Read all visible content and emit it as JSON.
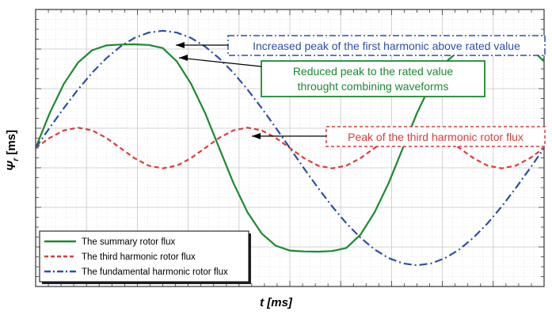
{
  "chart_data": {
    "type": "line",
    "title": "",
    "ylabel": "Ψ_r [ms]",
    "ylabel_symbol": "Ψ",
    "ylabel_sub": "r",
    "ylabel_unit": "[ms]",
    "xlabel": "t [ms]",
    "grid": true,
    "legend": "bottom-left",
    "series": [
      {
        "name": "The summary rotor flux",
        "color": "#1a8a2e",
        "style": "solid",
        "x": [
          0,
          10,
          20,
          30,
          40,
          50,
          60,
          70,
          80,
          90,
          100,
          110,
          120,
          130,
          140,
          150,
          160,
          170,
          180,
          190,
          200,
          210,
          220,
          230,
          240,
          250,
          260,
          270,
          280,
          290,
          300,
          310,
          320,
          330,
          340,
          350,
          360
        ],
        "y": [
          0,
          0.303,
          0.557,
          0.74,
          0.847,
          0.889,
          0.896,
          0.898,
          0.893,
          0.866,
          0.75,
          0.557,
          0.303,
          0.0,
          -0.303,
          -0.557,
          -0.74,
          -0.847,
          -0.889,
          -0.896,
          -0.898,
          -0.893,
          -0.866,
          -0.75,
          -0.557,
          -0.303,
          0,
          0.303,
          0.557,
          0.74,
          0.847,
          0.889,
          0.896,
          0.898,
          0.893,
          0.866,
          0.75
        ]
      },
      {
        "name": "The third harmonic rotor flux",
        "color": "#e03a3a",
        "style": "dashed",
        "x": [
          0,
          10,
          20,
          30,
          40,
          50,
          60,
          70,
          80,
          90,
          100,
          110,
          120,
          130,
          140,
          150,
          160,
          170,
          180,
          190,
          200,
          210,
          220,
          230,
          240,
          250,
          260,
          270,
          280,
          290,
          300,
          310,
          320,
          330,
          340,
          350,
          360
        ],
        "y": [
          0,
          0.088,
          0.153,
          0.176,
          0.153,
          0.088,
          0,
          -0.088,
          -0.153,
          -0.176,
          -0.153,
          -0.088,
          0,
          0.088,
          0.153,
          0.176,
          0.153,
          0.088,
          0,
          -0.088,
          -0.153,
          -0.176,
          -0.153,
          -0.088,
          0,
          0.088,
          0.153,
          0.176,
          0.153,
          0.088,
          0,
          -0.088,
          -0.153,
          -0.176,
          -0.153,
          -0.088,
          0
        ]
      },
      {
        "name": "The fundamental harmonic rotor flux",
        "color": "#2b4fa8",
        "style": "dashdot",
        "x": [
          0,
          10,
          20,
          30,
          40,
          50,
          60,
          70,
          80,
          90,
          100,
          110,
          120,
          130,
          140,
          150,
          160,
          170,
          180,
          190,
          200,
          210,
          220,
          230,
          240,
          250,
          260,
          270,
          280,
          290,
          300,
          310,
          320,
          330,
          340,
          350,
          360
        ],
        "y": [
          0,
          0.176,
          0.347,
          0.507,
          0.652,
          0.777,
          0.879,
          0.954,
          1.0,
          1.016,
          1.0,
          0.954,
          0.879,
          0.777,
          0.652,
          0.507,
          0.347,
          0.176,
          0,
          -0.176,
          -0.347,
          -0.507,
          -0.652,
          -0.777,
          -0.879,
          -0.954,
          -1.0,
          -1.016,
          -1.0,
          -0.954,
          -0.879,
          -0.777,
          -0.652,
          -0.507,
          -0.347,
          -0.176,
          0
        ]
      }
    ],
    "annotations": [
      {
        "text": "Increased peak of the first harmonic above rated value",
        "color": "#2b4fa8",
        "border": "dashdot"
      },
      {
        "text": "Reduced peak to the rated value throught combining waveforms",
        "line1": "Reduced peak to the rated value",
        "line2": "throught combining waveforms",
        "color": "#1a8a2e",
        "border": "solid"
      },
      {
        "text": "Peak of the third harmonic rotor flux",
        "color": "#e03a3a",
        "border": "dashed"
      }
    ],
    "xlim": [
      0,
      360
    ],
    "ylim": [
      -1.2,
      1.2
    ]
  }
}
